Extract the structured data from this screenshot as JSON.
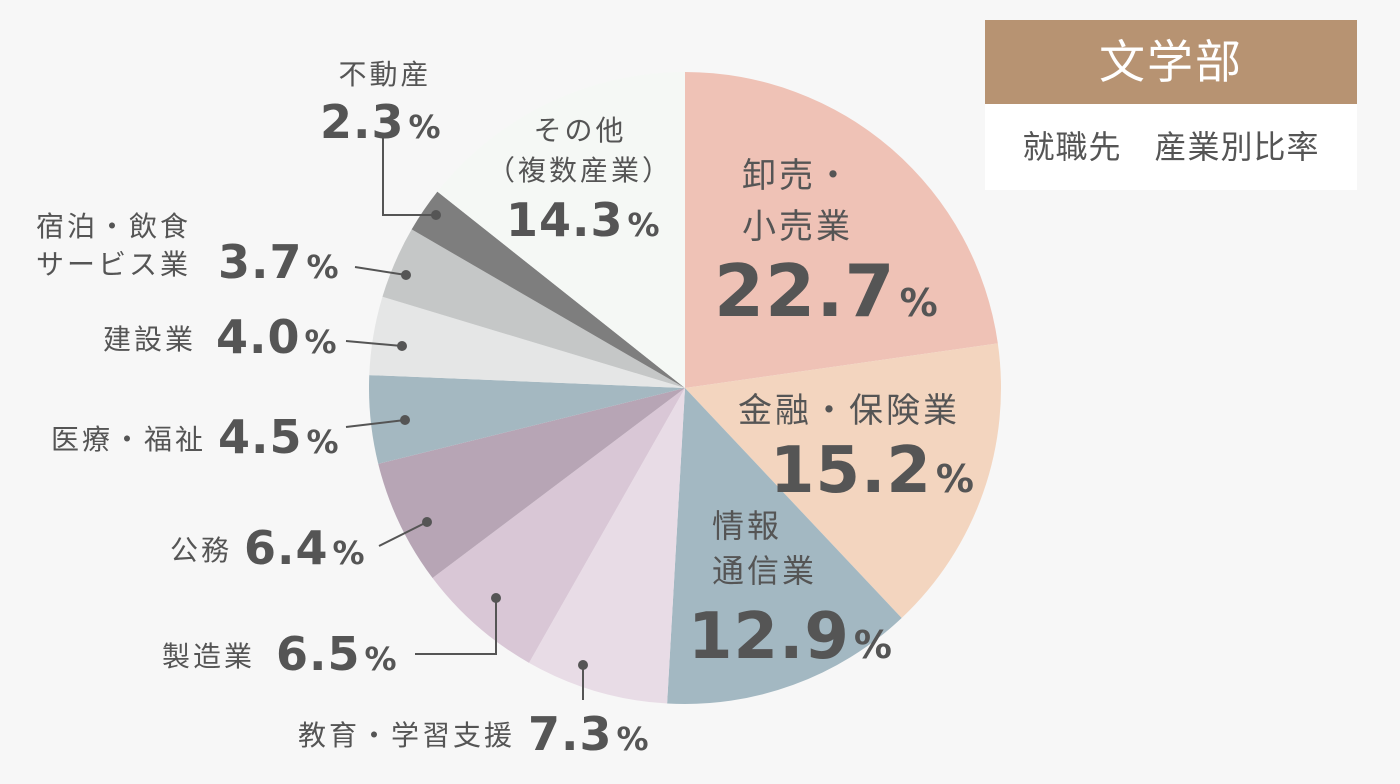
{
  "panel": {
    "title": "文学部",
    "subtitle": "就職先　産業別比率"
  },
  "chart_data": {
    "type": "pie",
    "start_angle_deg": 0,
    "direction": "clockwise",
    "slices": [
      {
        "label": "卸売・小売業",
        "value": 22.7,
        "display": "22.7",
        "unit": "%",
        "color": "#efc2b6"
      },
      {
        "label": "金融・保険業",
        "value": 15.2,
        "display": "15.2",
        "unit": "%",
        "color": "#f3d5bf"
      },
      {
        "label": "情報通信業",
        "value": 12.9,
        "display": "12.9",
        "unit": "%",
        "color": "#a3b8c2"
      },
      {
        "label": "教育・学習支援",
        "value": 7.3,
        "display": "7.3",
        "unit": "%",
        "color": "#e8dce6"
      },
      {
        "label": "製造業",
        "value": 6.5,
        "display": "6.5",
        "unit": "%",
        "color": "#d9c7d6"
      },
      {
        "label": "公務",
        "value": 6.4,
        "display": "6.4",
        "unit": "%",
        "color": "#b7a5b5"
      },
      {
        "label": "医療・福祉",
        "value": 4.5,
        "display": "4.5",
        "unit": "%",
        "color": "#a4b8c1"
      },
      {
        "label": "建設業",
        "value": 4.0,
        "display": "4.0",
        "unit": "%",
        "color": "#e5e6e6"
      },
      {
        "label": "宿泊・飲食サービス業",
        "value": 3.7,
        "display": "3.7",
        "unit": "%",
        "color": "#c5c7c7"
      },
      {
        "label": "不動産",
        "value": 2.3,
        "display": "2.3",
        "unit": "%",
        "color": "#7e7e7e"
      },
      {
        "label": "その他（複数産業）",
        "value": 14.3,
        "display": "14.3",
        "unit": "%",
        "color": "#f5f8f5"
      }
    ]
  }
}
